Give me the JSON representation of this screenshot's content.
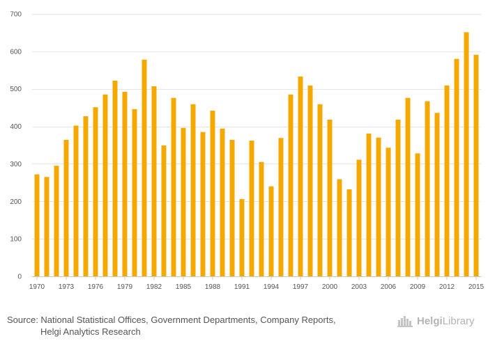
{
  "chart_data": {
    "type": "bar",
    "title": "",
    "xlabel": "",
    "ylabel": "",
    "ylim": [
      0,
      700
    ],
    "yticks": [
      0,
      100,
      200,
      300,
      400,
      500,
      600,
      700
    ],
    "color": "#F5A800",
    "grid_color": "#E6E6E6",
    "categories": [
      1970,
      1971,
      1972,
      1973,
      1974,
      1975,
      1976,
      1977,
      1978,
      1979,
      1980,
      1981,
      1982,
      1983,
      1984,
      1985,
      1986,
      1987,
      1988,
      1989,
      1990,
      1991,
      1992,
      1993,
      1994,
      1995,
      1996,
      1997,
      1998,
      1999,
      2000,
      2001,
      2002,
      2003,
      2004,
      2005,
      2006,
      2007,
      2008,
      2009,
      2010,
      2011,
      2012,
      2013,
      2014,
      2015
    ],
    "xtick_labels": [
      "1970",
      "1973",
      "1976",
      "1979",
      "1982",
      "1985",
      "1988",
      "1991",
      "1994",
      "1997",
      "2000",
      "2003",
      "2006",
      "2009",
      "2012",
      "2015"
    ],
    "values": [
      272,
      265,
      295,
      364,
      402,
      427,
      451,
      485,
      522,
      492,
      446,
      578,
      507,
      349,
      476,
      396,
      459,
      385,
      442,
      394,
      364,
      206,
      362,
      305,
      240,
      369,
      485,
      533,
      509,
      459,
      418,
      259,
      232,
      311,
      381,
      370,
      343,
      418,
      476,
      328,
      467,
      436,
      509,
      580,
      651,
      591
    ]
  },
  "footer": {
    "source_line1": "Source: National Statistical Offices, Government Departments, Company Reports,",
    "source_line2": "Helgi Analytics Research",
    "brand_bold": "Helgi",
    "brand_light": "Library"
  }
}
